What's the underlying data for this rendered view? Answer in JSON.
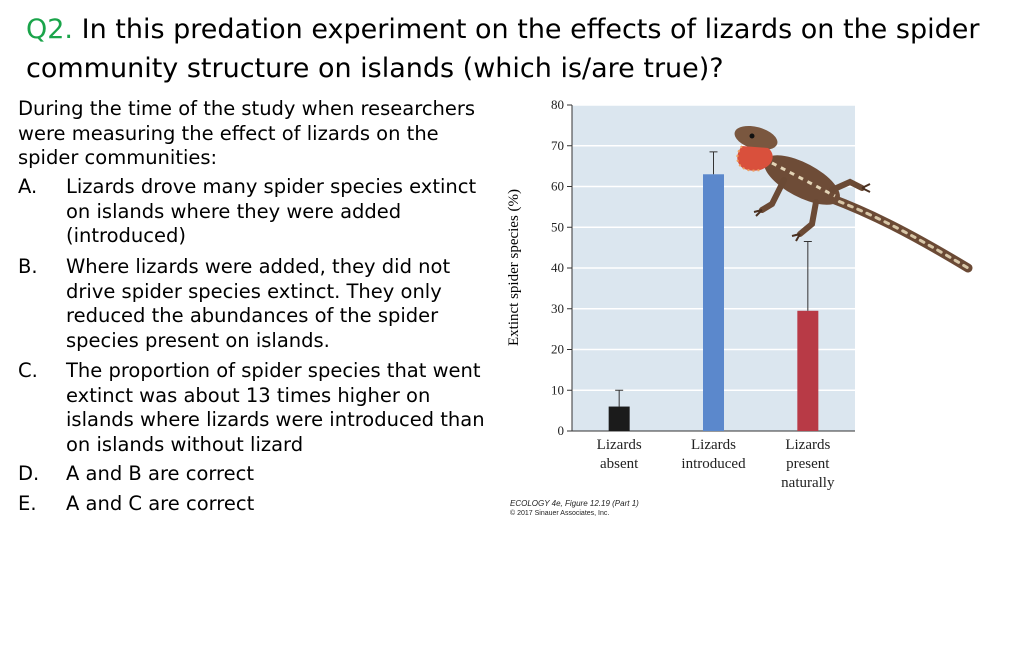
{
  "question": {
    "number": "Q2.",
    "text": "In this predation experiment on the effects of lizards on the spider community structure on islands (which is/are true)?"
  },
  "intro": "During the time of the study when researchers were measuring the effect of lizards on the spider communities:",
  "options": [
    {
      "letter": "A.",
      "text": "Lizards drove many spider species extinct on islands where they were added (introduced)"
    },
    {
      "letter": "B.",
      "text": "Where lizards were added, they did not drive spider species extinct. They only reduced the abundances of the spider species present on islands."
    },
    {
      "letter": "C.",
      "text": "The proportion of spider species that went extinct was about 13 times higher on islands where lizards were introduced than on islands without lizard"
    },
    {
      "letter": "D.",
      "text": "A and B are correct"
    },
    {
      "letter": "E.",
      "text": "A and C are correct"
    }
  ],
  "chart_data": {
    "type": "bar",
    "title": "",
    "xlabel": "",
    "ylabel": "Extinct spider species (%)",
    "ylim": [
      0,
      80
    ],
    "yticks": [
      0,
      10,
      20,
      30,
      40,
      50,
      60,
      70,
      80
    ],
    "categories": [
      [
        "Lizards",
        "absent"
      ],
      [
        "Lizards",
        "introduced"
      ],
      [
        "Lizards",
        "present",
        "naturally"
      ]
    ],
    "values": [
      6,
      63,
      29.5
    ],
    "error_upper": [
      10,
      68.5,
      46.5
    ],
    "colors": [
      "#1b1b1b",
      "#5b88cc",
      "#b83a46"
    ],
    "background": "#dbe6ef",
    "grid": true
  },
  "credit": {
    "line1": "ECOLOGY 4e, Figure 12.19 (Part 1)",
    "line2": "© 2017 Sinauer Associates, Inc."
  },
  "lizard_icon": "anole-lizard-photo"
}
